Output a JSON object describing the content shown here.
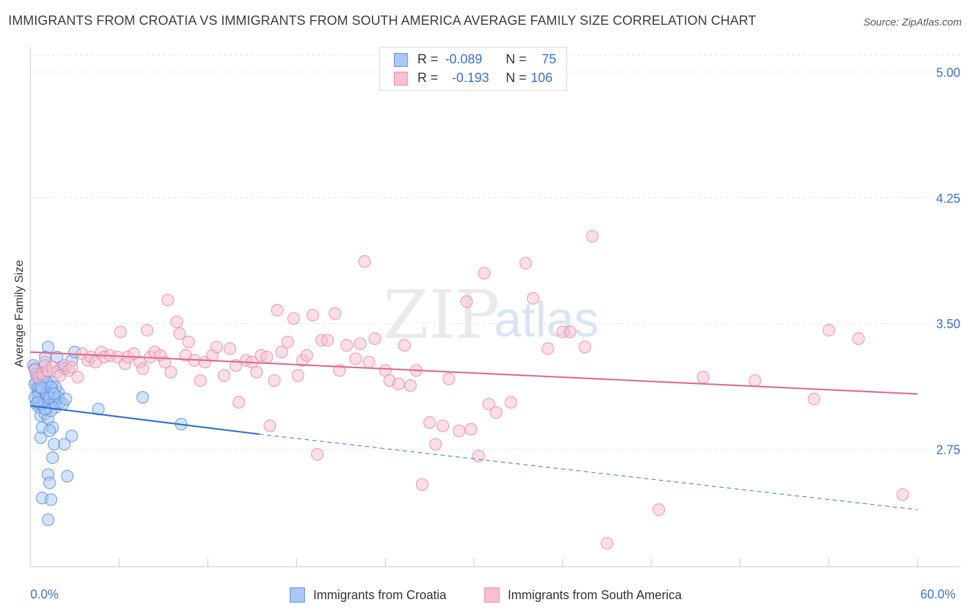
{
  "title": "IMMIGRANTS FROM CROATIA VS IMMIGRANTS FROM SOUTH AMERICA AVERAGE FAMILY SIZE CORRELATION CHART",
  "source": "Source: ZipAtlas.com",
  "watermark": {
    "zip": "ZIP",
    "atlas": "atlas"
  },
  "legend": {
    "rows": [
      {
        "r_label": "R =",
        "r_value": "-0.089",
        "n_label": "N =",
        "n_value": "75"
      },
      {
        "r_label": "R =",
        "r_value": "-0.193",
        "n_label": "N =",
        "n_value": "106"
      }
    ]
  },
  "colors": {
    "blue_fill": "#a8c8f5",
    "blue_stroke": "#5b8fd9",
    "blue_line": "#2d6fd4",
    "pink_fill": "#f7bfd0",
    "pink_stroke": "#e68aa8",
    "pink_line": "#e0688f",
    "axis_text": "#3b6fd4",
    "grid": "#e3e3e3"
  },
  "chart_data": {
    "type": "scatter",
    "title": "IMMIGRANTS FROM CROATIA VS IMMIGRANTS FROM SOUTH AMERICA AVERAGE FAMILY SIZE CORRELATION CHART",
    "xlabel": "",
    "ylabel": "Average Family Size",
    "xlim": [
      0,
      60
    ],
    "ylim": [
      2.05,
      5.1
    ],
    "x_tick_labels": {
      "min": "0.0%",
      "max": "60.0%"
    },
    "y_ticks": [
      2.75,
      3.5,
      4.25,
      5.0
    ],
    "y_tick_labels": [
      "2.75",
      "3.50",
      "4.25",
      "5.00"
    ],
    "grid": true,
    "series": [
      {
        "name": "Immigrants from Croatia",
        "color": "blue",
        "trend": {
          "x": [
            0,
            15.5
          ],
          "y": [
            3.01,
            2.84
          ],
          "dashed_to": [
            60,
            2.39
          ]
        },
        "points": [
          [
            0.2,
            3.25
          ],
          [
            0.3,
            3.23
          ],
          [
            0.4,
            3.15
          ],
          [
            0.5,
            3.1
          ],
          [
            0.6,
            3.05
          ],
          [
            0.4,
            3.02
          ],
          [
            0.6,
            3.0
          ],
          [
            0.7,
            3.02
          ],
          [
            0.5,
            3.07
          ],
          [
            0.8,
            3.13
          ],
          [
            0.9,
            3.07
          ],
          [
            1.0,
            3.03
          ],
          [
            1.1,
            3.1
          ],
          [
            1.2,
            3.05
          ],
          [
            0.9,
            3.15
          ],
          [
            1.3,
            3.13
          ],
          [
            1.4,
            3.07
          ],
          [
            1.5,
            3.1
          ],
          [
            1.6,
            3.06
          ],
          [
            1.7,
            3.0
          ],
          [
            1.8,
            3.05
          ],
          [
            1.9,
            3.09
          ],
          [
            2.0,
            3.03
          ],
          [
            0.7,
            2.95
          ],
          [
            1.0,
            2.96
          ],
          [
            1.2,
            2.93
          ],
          [
            1.5,
            2.88
          ],
          [
            1.4,
            2.98
          ],
          [
            1.6,
            3.02
          ],
          [
            1.0,
            2.99
          ],
          [
            1.2,
            3.36
          ],
          [
            1.8,
            3.3
          ],
          [
            2.1,
            3.24
          ],
          [
            2.3,
            3.23
          ],
          [
            2.8,
            3.28
          ],
          [
            3.0,
            3.33
          ],
          [
            1.0,
            3.3
          ],
          [
            0.7,
            2.82
          ],
          [
            0.8,
            2.88
          ],
          [
            1.3,
            2.86
          ],
          [
            1.6,
            2.78
          ],
          [
            2.3,
            2.78
          ],
          [
            2.8,
            2.83
          ],
          [
            1.5,
            2.7
          ],
          [
            1.2,
            2.6
          ],
          [
            1.3,
            2.55
          ],
          [
            2.5,
            2.59
          ],
          [
            0.8,
            2.46
          ],
          [
            1.4,
            2.45
          ],
          [
            1.2,
            2.33
          ],
          [
            4.6,
            2.99
          ],
          [
            7.6,
            3.06
          ],
          [
            10.2,
            2.9
          ],
          [
            0.3,
            3.14
          ],
          [
            0.5,
            3.12
          ],
          [
            0.6,
            3.08
          ],
          [
            0.8,
            3.11
          ],
          [
            0.9,
            3.04
          ],
          [
            1.1,
            3.08
          ],
          [
            1.3,
            3.06
          ],
          [
            1.5,
            3.15
          ],
          [
            1.7,
            3.12
          ],
          [
            1.9,
            3.06
          ],
          [
            2.2,
            3.02
          ],
          [
            0.4,
            3.2
          ],
          [
            0.6,
            3.17
          ],
          [
            0.9,
            3.18
          ],
          [
            1.1,
            3.15
          ],
          [
            1.4,
            3.12
          ],
          [
            1.6,
            3.08
          ],
          [
            0.3,
            3.06
          ],
          [
            0.5,
            3.03
          ],
          [
            0.7,
            3.12
          ],
          [
            1.0,
            3.25
          ],
          [
            2.4,
            3.05
          ]
        ]
      },
      {
        "name": "Immigrants from South America",
        "color": "pink",
        "trend": {
          "x": [
            0,
            60
          ],
          "y": [
            3.33,
            3.08
          ]
        },
        "points": [
          [
            0.3,
            3.22
          ],
          [
            0.5,
            3.18
          ],
          [
            0.8,
            3.2
          ],
          [
            1.0,
            3.27
          ],
          [
            1.2,
            3.22
          ],
          [
            1.5,
            3.24
          ],
          [
            1.8,
            3.21
          ],
          [
            2.0,
            3.19
          ],
          [
            2.3,
            3.25
          ],
          [
            2.6,
            3.22
          ],
          [
            2.8,
            3.24
          ],
          [
            3.2,
            3.18
          ],
          [
            3.5,
            3.32
          ],
          [
            3.9,
            3.28
          ],
          [
            4.1,
            3.3
          ],
          [
            4.4,
            3.27
          ],
          [
            4.8,
            3.33
          ],
          [
            5.0,
            3.3
          ],
          [
            5.4,
            3.31
          ],
          [
            5.9,
            3.3
          ],
          [
            6.1,
            3.45
          ],
          [
            6.4,
            3.26
          ],
          [
            6.6,
            3.3
          ],
          [
            7.0,
            3.32
          ],
          [
            7.4,
            3.27
          ],
          [
            7.6,
            3.23
          ],
          [
            7.9,
            3.46
          ],
          [
            8.1,
            3.3
          ],
          [
            8.4,
            3.33
          ],
          [
            8.8,
            3.31
          ],
          [
            9.1,
            3.27
          ],
          [
            9.3,
            3.64
          ],
          [
            9.5,
            3.21
          ],
          [
            9.9,
            3.51
          ],
          [
            10.1,
            3.44
          ],
          [
            10.5,
            3.31
          ],
          [
            10.7,
            3.39
          ],
          [
            11.1,
            3.28
          ],
          [
            11.5,
            3.16
          ],
          [
            11.8,
            3.27
          ],
          [
            12.3,
            3.31
          ],
          [
            12.6,
            3.36
          ],
          [
            13.1,
            3.19
          ],
          [
            13.5,
            3.35
          ],
          [
            13.9,
            3.25
          ],
          [
            14.1,
            3.03
          ],
          [
            14.6,
            3.28
          ],
          [
            15.0,
            3.27
          ],
          [
            15.3,
            3.21
          ],
          [
            15.6,
            3.31
          ],
          [
            16.0,
            3.3
          ],
          [
            16.2,
            2.89
          ],
          [
            16.5,
            3.16
          ],
          [
            16.7,
            3.58
          ],
          [
            17.0,
            3.33
          ],
          [
            17.4,
            3.39
          ],
          [
            17.8,
            3.53
          ],
          [
            18.1,
            3.19
          ],
          [
            18.4,
            3.28
          ],
          [
            18.7,
            3.31
          ],
          [
            19.1,
            3.55
          ],
          [
            19.4,
            2.72
          ],
          [
            19.7,
            3.4
          ],
          [
            20.1,
            3.4
          ],
          [
            20.6,
            3.56
          ],
          [
            20.9,
            3.22
          ],
          [
            21.4,
            3.37
          ],
          [
            22.0,
            3.29
          ],
          [
            22.6,
            3.87
          ],
          [
            22.3,
            3.38
          ],
          [
            22.9,
            3.27
          ],
          [
            23.3,
            3.41
          ],
          [
            24.0,
            3.22
          ],
          [
            24.3,
            3.16
          ],
          [
            24.9,
            3.14
          ],
          [
            25.3,
            3.37
          ],
          [
            25.7,
            3.13
          ],
          [
            26.1,
            3.22
          ],
          [
            26.5,
            2.54
          ],
          [
            27.0,
            2.91
          ],
          [
            27.4,
            2.78
          ],
          [
            27.9,
            2.89
          ],
          [
            28.3,
            3.17
          ],
          [
            29.0,
            2.86
          ],
          [
            29.5,
            3.63
          ],
          [
            29.8,
            2.87
          ],
          [
            30.3,
            2.71
          ],
          [
            30.7,
            3.8
          ],
          [
            31.0,
            3.02
          ],
          [
            31.5,
            2.97
          ],
          [
            32.5,
            3.03
          ],
          [
            33.5,
            3.86
          ],
          [
            34.0,
            3.65
          ],
          [
            35.0,
            3.35
          ],
          [
            36.0,
            3.45
          ],
          [
            36.5,
            3.45
          ],
          [
            37.5,
            3.36
          ],
          [
            38.0,
            4.02
          ],
          [
            39.0,
            2.19
          ],
          [
            42.5,
            2.39
          ],
          [
            45.5,
            3.18
          ],
          [
            49.0,
            3.16
          ],
          [
            53.0,
            3.05
          ],
          [
            54.0,
            3.46
          ],
          [
            56.0,
            3.41
          ],
          [
            59.0,
            2.48
          ]
        ]
      }
    ]
  },
  "bottom_legend": {
    "blue_label": "Immigrants from Croatia",
    "pink_label": "Immigrants from South America"
  }
}
